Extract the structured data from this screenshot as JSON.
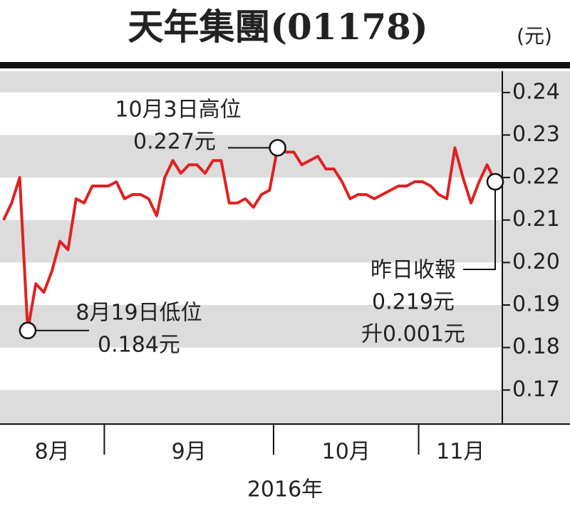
{
  "chart_data": {
    "type": "line",
    "title": "天年集團(01178)",
    "unit": "(元)",
    "xlabel": "2016年",
    "categories": [
      null,
      null,
      null,
      null,
      null,
      null,
      null,
      null,
      null,
      null,
      null,
      null,
      null,
      null,
      null,
      null,
      null,
      null,
      null,
      null,
      null,
      null,
      null,
      null,
      null,
      null,
      null,
      null,
      null,
      null,
      null,
      null,
      null,
      null,
      null,
      null,
      null,
      null,
      null,
      null,
      null,
      null,
      null,
      null,
      null,
      null,
      null,
      null,
      null,
      null,
      null,
      null,
      null,
      null,
      null,
      null,
      null,
      null,
      null,
      null,
      null,
      null
    ],
    "x_groups": [
      {
        "label": "8月",
        "start": 0,
        "end": 12
      },
      {
        "label": "9月",
        "start": 13,
        "end": 33
      },
      {
        "label": "10月",
        "start": 34,
        "end": 51
      },
      {
        "label": "11月",
        "start": 52,
        "end": 61
      }
    ],
    "series": [
      {
        "color": "#e02020",
        "values": [
          0.21,
          0.214,
          0.22,
          0.184,
          0.195,
          0.193,
          0.198,
          0.205,
          0.203,
          0.215,
          0.214,
          0.218,
          0.218,
          0.218,
          0.219,
          0.215,
          0.216,
          0.216,
          0.215,
          0.211,
          0.22,
          0.224,
          0.221,
          0.223,
          0.223,
          0.221,
          0.224,
          0.224,
          0.214,
          0.214,
          0.215,
          0.213,
          0.216,
          0.217,
          0.227,
          0.226,
          0.226,
          0.223,
          0.224,
          0.225,
          0.222,
          0.222,
          0.219,
          0.215,
          0.216,
          0.216,
          0.215,
          0.216,
          0.217,
          0.218,
          0.218,
          0.219,
          0.219,
          0.218,
          0.216,
          0.215,
          0.227,
          0.22,
          0.214,
          0.219,
          0.223,
          0.219
        ]
      }
    ],
    "ylim": [
      0.162,
      0.245
    ],
    "yticks": [
      0.24,
      0.23,
      0.22,
      0.21,
      {
        "value": 0.2,
        "label": "0.20"
      },
      0.19,
      0.18,
      0.17
    ],
    "annotations": [
      {
        "point": 34,
        "lines": [
          "10月3日高位",
          "0.227元"
        ]
      },
      {
        "point": 3,
        "lines": [
          "8月19日低位",
          "0.184元"
        ]
      },
      {
        "point": 61,
        "lines": [
          "昨日收報",
          "0.219元",
          "升0.001元"
        ]
      }
    ]
  }
}
